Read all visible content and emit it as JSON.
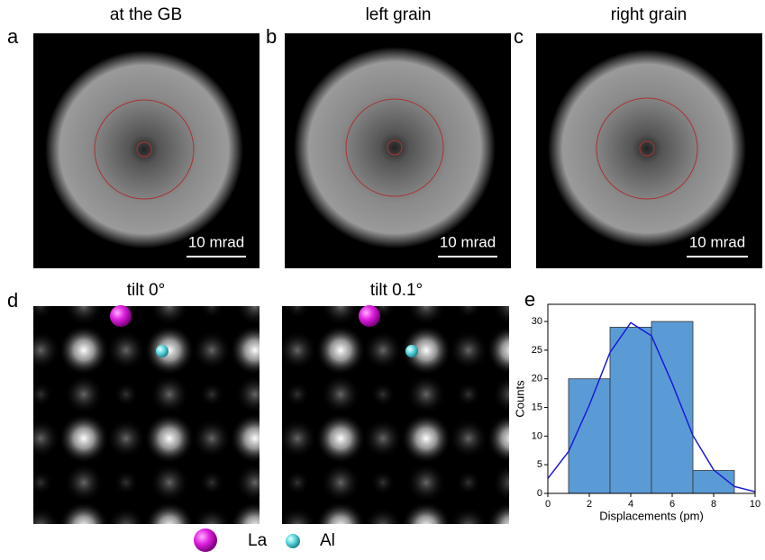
{
  "panels": [
    {
      "label": "a",
      "title": "at the GB",
      "scale": "10 mrad"
    },
    {
      "label": "b",
      "title": "left grain",
      "scale": "10 mrad"
    },
    {
      "label": "c",
      "title": "right grain",
      "scale": "10 mrad"
    },
    {
      "label": "d",
      "titles": [
        "tilt 0°",
        "tilt 0.1°"
      ]
    },
    {
      "label": "e"
    }
  ],
  "legend": [
    "La",
    "Al"
  ],
  "chart_data": {
    "type": "histogram",
    "xlabel": "Displacements (pm)",
    "ylabel": "Counts",
    "bins": [
      1,
      3,
      5,
      7,
      9
    ],
    "counts": [
      20,
      29,
      30,
      4
    ],
    "color": "#5b9bd5",
    "fit": {
      "x": [
        0,
        1,
        2,
        3,
        4,
        5,
        6,
        7,
        8,
        9,
        10
      ],
      "y": [
        2.6,
        7.3,
        15.4,
        24.6,
        29.8,
        27.5,
        19.2,
        10.1,
        4.1,
        1.2,
        0.3
      ],
      "color": "#1a1ad6"
    },
    "xlim": [
      0,
      10
    ],
    "ylim": [
      0,
      33
    ],
    "xticks": [
      0,
      2,
      4,
      6,
      8,
      10
    ],
    "yticks": [
      0,
      5,
      10,
      15,
      20,
      25,
      30
    ]
  }
}
